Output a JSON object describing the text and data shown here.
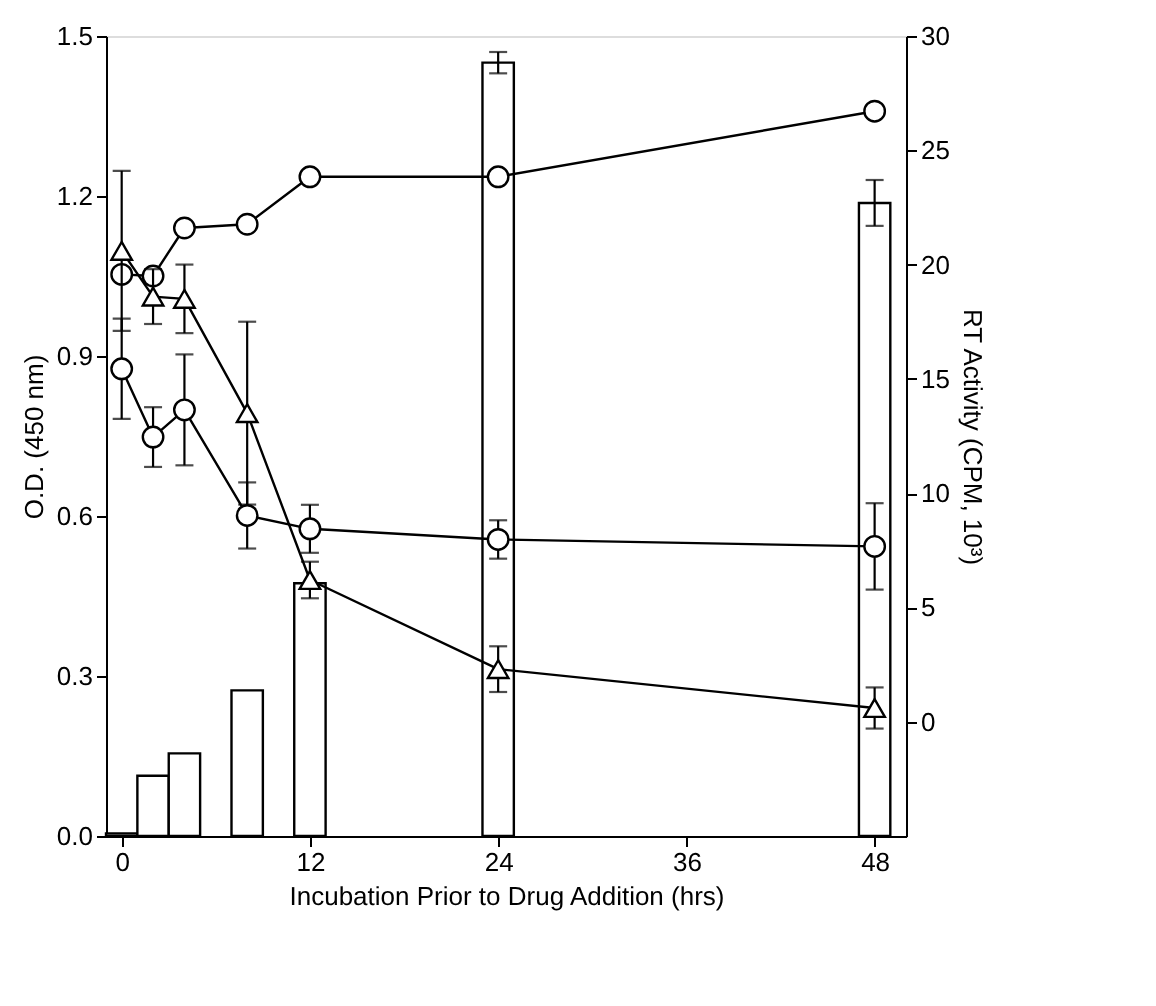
{
  "chart_data": {
    "type": "line",
    "xlabel": "Incubation Prior to Drug Addition (hrs)",
    "ylabel": "O.D. (450 nm)",
    "y2label": "RT Activity (CPM, 10³)",
    "xlim": [
      -1,
      50
    ],
    "xticks": [
      0,
      12,
      24,
      36,
      48
    ],
    "ylim": [
      0,
      1.5
    ],
    "yticks": [
      {
        "value": 0,
        "label": "0.0"
      },
      {
        "value": 0.3,
        "label": "0.3"
      },
      {
        "value": 0.6,
        "label": "0.6"
      },
      {
        "value": 0.9,
        "label": "0.9"
      },
      {
        "value": 1.2,
        "label": "1.2"
      },
      {
        "value": 1.5,
        "label": "1.5"
      }
    ],
    "y2lim": [
      -5,
      30
    ],
    "y2ticks": [
      0,
      5,
      10,
      15,
      20,
      25,
      30
    ],
    "grid": false,
    "series": [
      {
        "type": "bar",
        "color": "#000000",
        "x": [
          0,
          2,
          4,
          8,
          12,
          24,
          48
        ],
        "values": [
          0.005,
          0.113,
          0.155,
          0.273,
          0.474,
          1.45,
          1.187
        ],
        "errors": [
          null,
          null,
          null,
          null,
          null,
          0.02,
          0.043
        ]
      },
      {
        "color": "#000000",
        "marker": "circle",
        "x": [
          0,
          2,
          4,
          8,
          12,
          24,
          48
        ],
        "values": [
          1.053,
          1.05,
          1.14,
          1.147,
          1.236,
          1.236,
          1.359
        ]
      },
      {
        "color": "#000000",
        "marker": "circle",
        "x": [
          0,
          2,
          4,
          8,
          12,
          24,
          48
        ],
        "values": [
          0.876,
          0.748,
          0.799,
          0.601,
          0.576,
          0.556,
          0.543
        ],
        "errors": [
          0.094,
          0.056,
          0.104,
          0.062,
          0.045,
          0.036,
          0.081
        ]
      },
      {
        "axis": "y2",
        "color": "#000000",
        "marker": "triangle",
        "x": [
          0,
          2,
          4,
          8,
          12,
          24,
          48
        ],
        "values": [
          20.6,
          18.6,
          18.5,
          13.5,
          6.2,
          2.3,
          0.6
        ],
        "errors": [
          3.5,
          1.2,
          1.5,
          4.0,
          0.8,
          1.0,
          0.9
        ]
      }
    ]
  }
}
